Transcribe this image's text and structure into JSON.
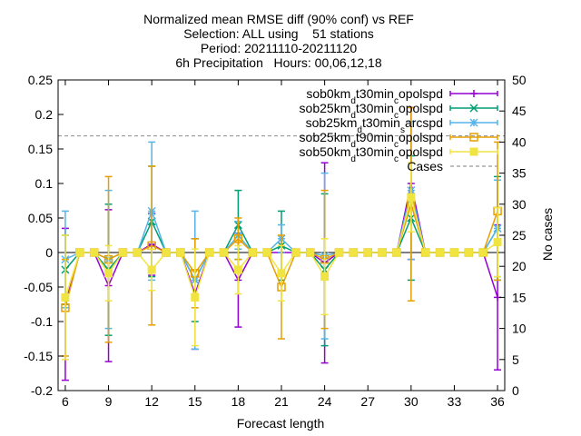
{
  "chart_data": {
    "type": "line",
    "title_lines": [
      "Normalized mean RMSE diff (90% conf) vs REF",
      "Selection: ALL using    51 stations",
      "Period: 20211110-20211120",
      "6h Precipitation   Hours: 00,06,12,18"
    ],
    "xlabel": "Forecast length",
    "ylabel_right": "No cases",
    "xlim": [
      5.5,
      36.5
    ],
    "ylim": [
      -0.2,
      0.25
    ],
    "y2lim": [
      0,
      50
    ],
    "x_ticks": [
      6,
      9,
      12,
      15,
      18,
      21,
      24,
      27,
      30,
      33,
      36
    ],
    "y_ticks": [
      -0.2,
      -0.15,
      -0.1,
      -0.05,
      0,
      0.05,
      0.1,
      0.15,
      0.2,
      0.25
    ],
    "y_tick_labels": [
      "-0.2",
      "-0.15",
      "-0.1",
      "-0.05",
      "0",
      "0.05",
      "0.1",
      "0.15",
      "0.2",
      "0.25"
    ],
    "y2_ticks": [
      0,
      5,
      10,
      15,
      20,
      25,
      30,
      35,
      40,
      45,
      50
    ],
    "legend_position": "top-right",
    "series": [
      {
        "name": "sob0km_dt30min_copolspd",
        "legend_parts": [
          [
            "sob0km",
            ""
          ],
          [
            "d",
            "sub"
          ],
          [
            "t30min",
            ""
          ],
          [
            "c",
            "sub"
          ],
          [
            "opolspd",
            ""
          ]
        ],
        "color": "#9400d3",
        "marker": "plus",
        "x": [
          6,
          9,
          12,
          15,
          18,
          24,
          30,
          36
        ],
        "y": [
          -0.075,
          -0.048,
          0.012,
          -0.06,
          -0.04,
          -0.015,
          0.1,
          -0.065
        ],
        "err": [
          0.11,
          0.11,
          0.045,
          0.08,
          0.068,
          0.145,
          0.11,
          0.105
        ]
      },
      {
        "name": "sob25km_dt30min_copolspd",
        "legend_parts": [
          [
            "sob25km",
            ""
          ],
          [
            "d",
            "sub"
          ],
          [
            "t30min",
            ""
          ],
          [
            "c",
            "sub"
          ],
          [
            "opolspd",
            ""
          ]
        ],
        "color": "#009e73",
        "marker": "cross",
        "x": [
          6,
          9,
          12,
          15,
          18,
          21,
          24,
          30,
          36
        ],
        "y": [
          -0.025,
          -0.025,
          0.045,
          -0.04,
          0.04,
          0.01,
          -0.025,
          0.05,
          0.035
        ],
        "err": [
          0.05,
          0.095,
          0.08,
          0.06,
          0.05,
          0.05,
          0.11,
          0.09,
          0.075
        ]
      },
      {
        "name": "sob25km_dt30min_sarcspd",
        "legend_parts": [
          [
            "sob25km",
            ""
          ],
          [
            "d",
            "sub"
          ],
          [
            "t30min",
            ""
          ],
          [
            "s",
            "sub"
          ],
          [
            "arcspd",
            ""
          ]
        ],
        "color": "#56b4e9",
        "marker": "star",
        "x": [
          6,
          9,
          12,
          15,
          18,
          21,
          24,
          30,
          36
        ],
        "y": [
          -0.01,
          -0.01,
          0.06,
          -0.04,
          0.025,
          0.02,
          -0.005,
          0.09,
          0.035
        ],
        "err": [
          0.07,
          0.1,
          0.1,
          0.1,
          0.02,
          0.02,
          0.12,
          0.1,
          0.07
        ]
      },
      {
        "name": "sob25km_dt90min_copolspd",
        "legend_parts": [
          [
            "sob25km",
            ""
          ],
          [
            "d",
            "sub"
          ],
          [
            "t90min",
            ""
          ],
          [
            "c",
            "sub"
          ],
          [
            "opolspd",
            ""
          ]
        ],
        "color": "#e69f00",
        "marker": "box",
        "x": [
          6,
          9,
          12,
          15,
          18,
          21,
          24,
          30,
          36
        ],
        "y": [
          -0.08,
          -0.01,
          0.01,
          -0.03,
          0.02,
          -0.05,
          -0.01,
          0.07,
          0.06
        ],
        "err": [
          0.07,
          0.12,
          0.115,
          0.05,
          0.03,
          0.075,
          0.1,
          0.14,
          0.1
        ]
      },
      {
        "name": "sob50km_dt30min_copolspd",
        "legend_parts": [
          [
            "sob50km",
            ""
          ],
          [
            "d",
            "sub"
          ],
          [
            "t30min",
            ""
          ],
          [
            "c",
            "sub"
          ],
          [
            "opolspd",
            ""
          ]
        ],
        "color": "#f0e442",
        "marker": "fillbox",
        "x": [
          6,
          9,
          12,
          15,
          18,
          21,
          24,
          30,
          36
        ],
        "y": [
          -0.065,
          -0.03,
          -0.025,
          -0.065,
          -0.025,
          -0.03,
          -0.035,
          0.08,
          0.015
        ],
        "err": [
          0.09,
          0.04,
          0.03,
          0.07,
          0.035,
          0.04,
          0.055,
          0.05,
          0.05
        ]
      }
    ],
    "cases": {
      "name": "Cases",
      "color": "#999999",
      "value": 41
    }
  }
}
